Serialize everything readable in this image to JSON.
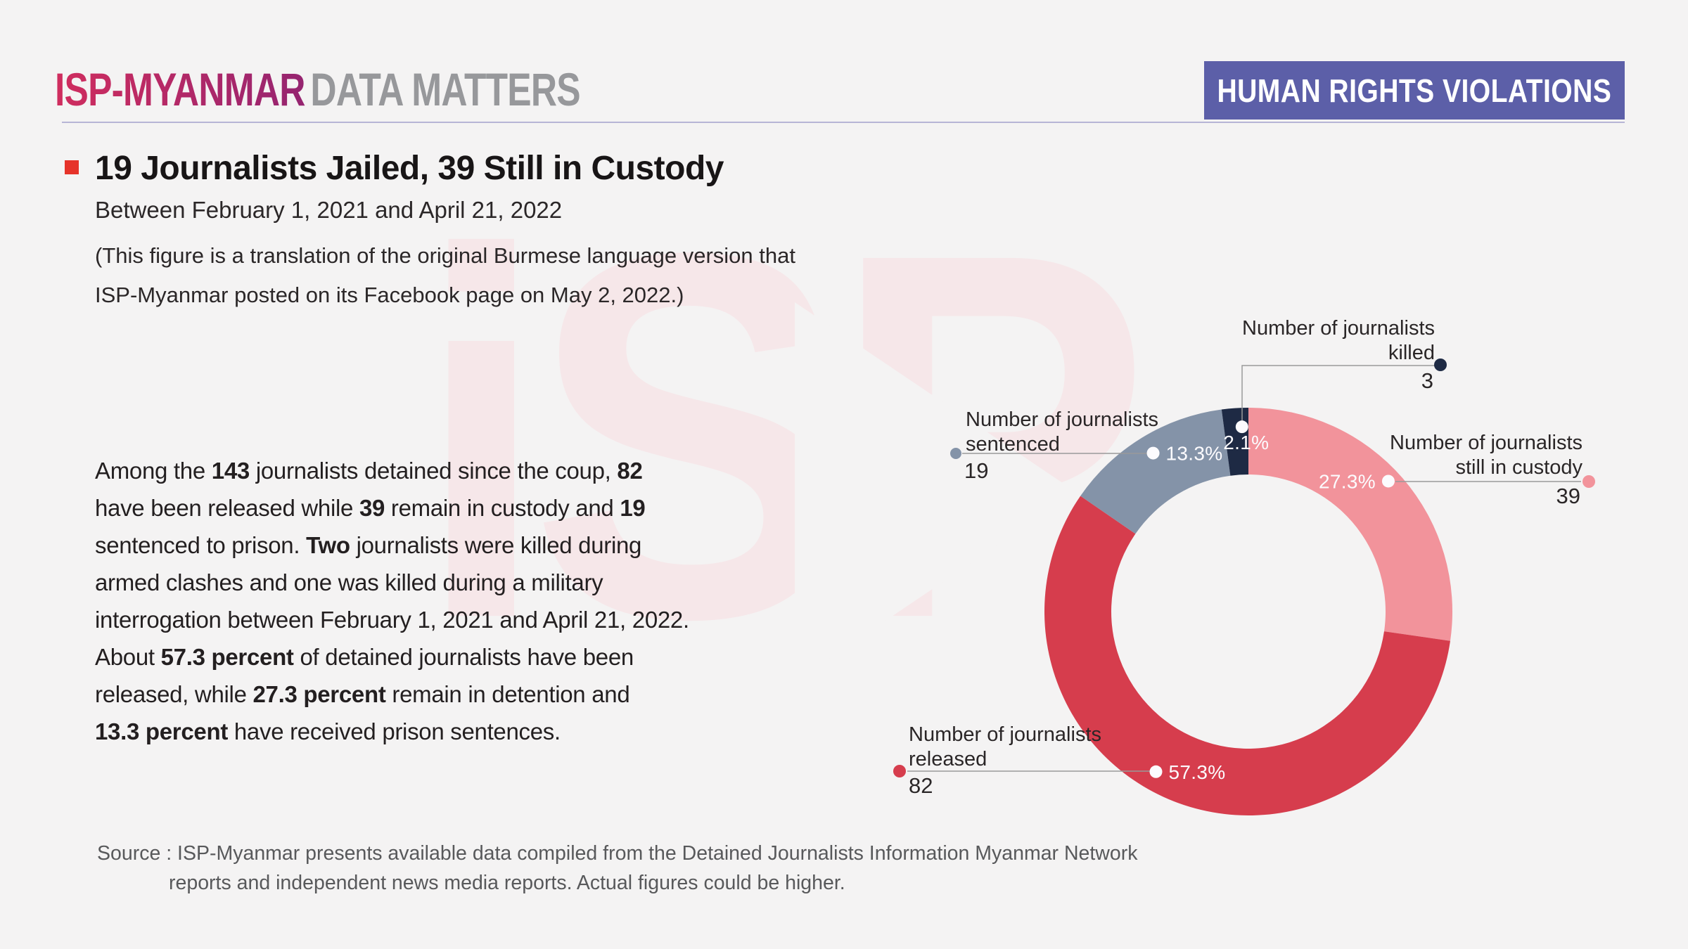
{
  "page": {
    "background": "#f4f3f3"
  },
  "header": {
    "logo_primary": "ISP-MYANMAR",
    "logo_secondary": "DATA MATTERS",
    "logo_gradient_start": "#d02d5e",
    "logo_gradient_end": "#952470",
    "logo_secondary_color": "#97989b",
    "divider_color": "#b7b5d6",
    "badge": "HUMAN RIGHTS VIOLATIONS",
    "badge_bg": "#5c5fa8"
  },
  "headline": {
    "bullet_color": "#e6332a",
    "title": "19 Journalists Jailed, 39 Still in Custody",
    "subtitle": "Between February 1, 2021 and April 21, 2022",
    "note_line1": "(This figure is a translation of the original Burmese language version that",
    "note_line2": "ISP-Myanmar posted on its Facebook page on May 2, 2022.)"
  },
  "body": {
    "lines": [
      [
        {
          "t": "Among the "
        },
        {
          "t": "143",
          "b": true
        },
        {
          "t": " journalists detained since the coup, "
        },
        {
          "t": "82",
          "b": true
        }
      ],
      [
        {
          "t": "have been released while "
        },
        {
          "t": "39",
          "b": true
        },
        {
          "t": " remain in custody and "
        },
        {
          "t": "19",
          "b": true
        }
      ],
      [
        {
          "t": "sentenced to prison. "
        },
        {
          "t": "Two",
          "b": true
        },
        {
          "t": " journalists were killed during"
        }
      ],
      [
        {
          "t": "armed clashes and one was killed during a military"
        }
      ],
      [
        {
          "t": "interrogation between February 1, 2021 and April 21, 2022."
        }
      ],
      [
        {
          "t": "About "
        },
        {
          "t": "57.3 percent",
          "b": true
        },
        {
          "t": " of detained journalists have been"
        }
      ],
      [
        {
          "t": "released, while "
        },
        {
          "t": "27.3 percent",
          "b": true
        },
        {
          "t": " remain in detention and"
        }
      ],
      [
        {
          "t": "13.3 percent",
          "b": true
        },
        {
          "t": " have received prison sentences."
        }
      ]
    ]
  },
  "watermark": {
    "text": "iSP",
    "color": "#f6e7e9"
  },
  "chart_data": {
    "type": "donut",
    "title": "19 Journalists Jailed, 39 Still in Custody",
    "total": 143,
    "clockwise_from_top": true,
    "segments": [
      {
        "key": "custody",
        "label": "Number of journalists still in custody",
        "value": 39,
        "pct": 27.3,
        "pct_label": "27.3%",
        "color": "#f2939b"
      },
      {
        "key": "released",
        "label": "Number of journalists released",
        "value": 82,
        "pct": 57.3,
        "pct_label": "57.3%",
        "color": "#d63d4d"
      },
      {
        "key": "sentenced",
        "label": "Number of journalists sentenced",
        "value": 19,
        "pct": 13.3,
        "pct_label": "13.3%",
        "color": "#8493a8"
      },
      {
        "key": "killed",
        "label": "Number of journalists killed",
        "value": 3,
        "pct": 2.1,
        "pct_label": "2.1%",
        "color": "#1e2a44"
      }
    ]
  },
  "callouts": {
    "killed": {
      "label_l1": "Number of journalists",
      "label_l2": "killed",
      "value": "3"
    },
    "custody": {
      "label_l1": "Number of journalists",
      "label_l2": "still in custody",
      "value": "39"
    },
    "sentenced": {
      "label_l1": "Number of journalists",
      "label_l2": "sentenced",
      "value": "19"
    },
    "released": {
      "label_l1": "Number of journalists",
      "label_l2": "released",
      "value": "82"
    }
  },
  "source": {
    "line1": "Source : ISP-Myanmar presents available data compiled from the Detained Journalists Information Myanmar Network",
    "line2": "reports and independent news media reports. Actual figures could be higher."
  }
}
